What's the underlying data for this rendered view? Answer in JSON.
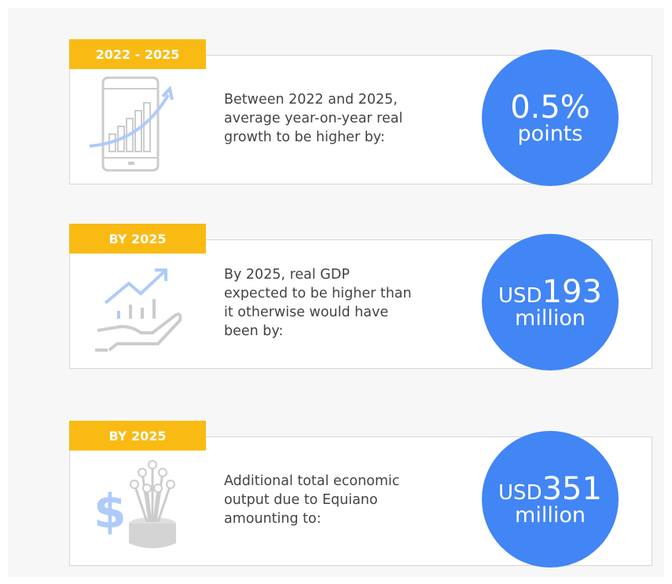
{
  "cards": [
    {
      "tag": "2022 - 2025",
      "description": [
        "Between 2022 and 2025,",
        "average year-on-year real",
        "growth to be higher by:"
      ],
      "value": {
        "prefix": null,
        "main": "0.5%",
        "unit": "points"
      }
    },
    {
      "tag": "BY 2025",
      "description": [
        "By 2025, real GDP",
        "expected to be higher than",
        "it otherwise would have",
        "been by:"
      ],
      "value": {
        "prefix": "USD",
        "main": "193",
        "unit": "million"
      }
    },
    {
      "tag": "BY 2025",
      "description": [
        "Additional total economic",
        "output due to Equiano",
        "amounting to:"
      ],
      "value": {
        "prefix": "USD",
        "main": "351",
        "unit": "million"
      }
    }
  ]
}
